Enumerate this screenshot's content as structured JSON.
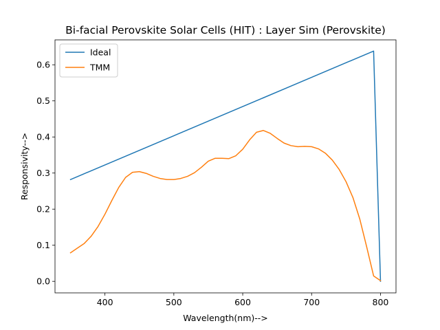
{
  "chart_data": {
    "type": "line",
    "title": "Bi-facial Perovskite Solar Cells (HIT) : Layer Sim (Perovskite)",
    "xlabel": "Wavelength(nm)-->",
    "ylabel": "Responsivity-->",
    "xlim": [
      327.5,
      822.5
    ],
    "ylim": [
      -0.032,
      0.669
    ],
    "xticks": [
      400,
      500,
      600,
      700,
      800
    ],
    "yticks": [
      0.0,
      0.1,
      0.2,
      0.3,
      0.4,
      0.5,
      0.6
    ],
    "ytick_labels": [
      "0.0",
      "0.1",
      "0.2",
      "0.3",
      "0.4",
      "0.5",
      "0.6"
    ],
    "grid": false,
    "legend_position": "top-left",
    "series": [
      {
        "name": "Ideal",
        "color": "#1f77b4",
        "x": [
          350,
          790,
          800
        ],
        "y": [
          0.282,
          0.638,
          0.0
        ]
      },
      {
        "name": "TMM",
        "color": "#ff7f0e",
        "x": [
          350,
          360,
          370,
          380,
          390,
          400,
          410,
          420,
          430,
          440,
          450,
          460,
          470,
          480,
          490,
          500,
          510,
          520,
          530,
          540,
          550,
          560,
          570,
          580,
          590,
          600,
          610,
          620,
          630,
          640,
          650,
          660,
          670,
          680,
          690,
          700,
          710,
          720,
          730,
          740,
          750,
          760,
          770,
          780,
          790,
          800
        ],
        "y": [
          0.079,
          0.092,
          0.105,
          0.125,
          0.152,
          0.186,
          0.224,
          0.26,
          0.288,
          0.302,
          0.304,
          0.299,
          0.291,
          0.285,
          0.282,
          0.282,
          0.285,
          0.291,
          0.301,
          0.316,
          0.333,
          0.341,
          0.341,
          0.34,
          0.348,
          0.366,
          0.392,
          0.413,
          0.418,
          0.41,
          0.396,
          0.383,
          0.376,
          0.373,
          0.374,
          0.373,
          0.367,
          0.355,
          0.336,
          0.31,
          0.276,
          0.232,
          0.172,
          0.095,
          0.015,
          0.002
        ]
      }
    ]
  }
}
